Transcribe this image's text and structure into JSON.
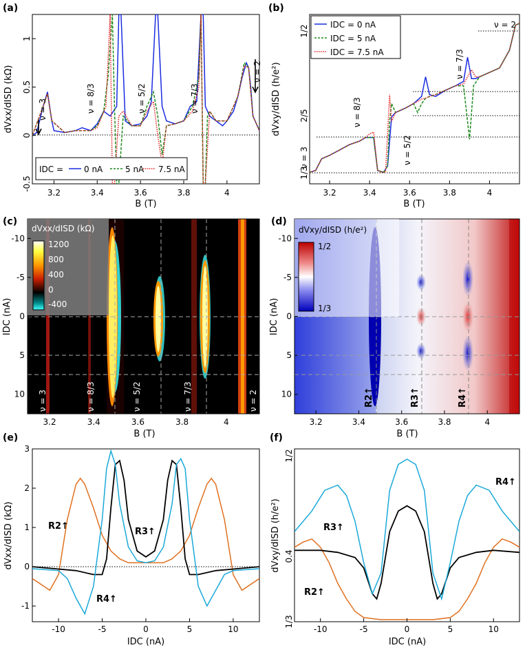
{
  "colors": {
    "blue": "#1a2be0",
    "green": "#1a8a1a",
    "red": "#e02020",
    "black": "#000000",
    "cyan": "#1aa8d8",
    "orange": "#e07020"
  },
  "chart_data": [
    {
      "panel": "(a)",
      "type": "line",
      "xlabel": "B (T)",
      "ylabel": "dVxx/dISD (kΩ)",
      "xlim": [
        3.1,
        4.15
      ],
      "ylim": [
        -0.5,
        1.25
      ],
      "xticks": [
        "3.2",
        "3.4",
        "3.6",
        "3.8",
        "4"
      ],
      "yticks": [
        "-0.5",
        "0",
        "0.5",
        "1"
      ],
      "legend_title": "IDC =",
      "legend": [
        "0 nA",
        "5 nA",
        "7.5 nA"
      ],
      "annotations": [
        "ν = 3",
        "ν = 8/3",
        "ν = 5/2",
        "ν = 7/3",
        "ν = 2"
      ],
      "series": [
        {
          "name": "0 nA",
          "x": [
            3.1,
            3.12,
            3.15,
            3.17,
            3.19,
            3.2,
            3.25,
            3.3,
            3.33,
            3.37,
            3.4,
            3.43,
            3.46,
            3.49,
            3.5,
            3.51,
            3.53,
            3.56,
            3.6,
            3.63,
            3.65,
            3.67,
            3.68,
            3.7,
            3.72,
            3.76,
            3.8,
            3.83,
            3.86,
            3.88,
            3.89,
            3.9,
            3.92,
            3.95,
            3.98,
            4.0,
            4.03,
            4.05,
            4.07,
            4.09,
            4.1,
            4.11,
            4.12,
            4.15
          ],
          "y": [
            0.0,
            0.03,
            0.3,
            0.45,
            0.15,
            0.05,
            0.03,
            0.05,
            0.08,
            0.05,
            0.12,
            0.25,
            0.2,
            0.3,
            1.25,
            1.25,
            0.15,
            0.1,
            0.12,
            0.2,
            0.35,
            1.25,
            1.25,
            0.3,
            0.15,
            0.12,
            0.15,
            0.3,
            0.35,
            1.25,
            1.25,
            0.3,
            0.2,
            0.15,
            0.1,
            0.15,
            0.25,
            0.4,
            0.6,
            0.75,
            0.7,
            0.5,
            0.2,
            0.05
          ]
        },
        {
          "name": "5 nA",
          "x": [
            3.1,
            3.15,
            3.17,
            3.19,
            3.25,
            3.3,
            3.37,
            3.4,
            3.43,
            3.45,
            3.47,
            3.48,
            3.49,
            3.5,
            3.52,
            3.56,
            3.6,
            3.63,
            3.66,
            3.68,
            3.7,
            3.72,
            3.76,
            3.8,
            3.84,
            3.87,
            3.88,
            3.89,
            3.9,
            3.91,
            3.92,
            3.95,
            4.0,
            4.05,
            4.08,
            4.1,
            4.12,
            4.15
          ],
          "y": [
            0.0,
            0.3,
            0.43,
            0.15,
            0.03,
            0.05,
            0.05,
            0.1,
            0.25,
            0.6,
            1.25,
            0.3,
            -0.5,
            -0.5,
            0.2,
            0.1,
            0.1,
            0.3,
            0.45,
            0.2,
            -0.2,
            0.1,
            0.12,
            0.15,
            0.3,
            0.6,
            1.25,
            -0.5,
            -0.5,
            0.2,
            0.25,
            0.15,
            0.15,
            0.4,
            0.75,
            0.7,
            0.2,
            0.05
          ]
        },
        {
          "name": "7.5 nA",
          "x": [
            3.1,
            3.15,
            3.17,
            3.19,
            3.25,
            3.3,
            3.37,
            3.4,
            3.44,
            3.46,
            3.47,
            3.48,
            3.5,
            3.52,
            3.56,
            3.6,
            3.63,
            3.66,
            3.68,
            3.7,
            3.72,
            3.76,
            3.8,
            3.84,
            3.87,
            3.88,
            3.89,
            3.9,
            3.92,
            3.95,
            4.0,
            4.05,
            4.08,
            4.1,
            4.12,
            4.15
          ],
          "y": [
            0.0,
            0.3,
            0.43,
            0.15,
            0.03,
            0.05,
            0.05,
            0.08,
            0.3,
            1.25,
            -0.5,
            -0.5,
            0.2,
            0.25,
            0.1,
            0.1,
            0.25,
            0.35,
            0.0,
            -0.3,
            0.1,
            0.12,
            0.15,
            0.25,
            0.5,
            1.25,
            -0.5,
            -0.5,
            0.25,
            0.15,
            0.15,
            0.4,
            0.72,
            0.7,
            0.2,
            0.05
          ]
        }
      ]
    },
    {
      "panel": "(b)",
      "type": "line",
      "xlabel": "B (T)",
      "ylabel": "dVxy/dISD (h/e²)",
      "xlim": [
        3.1,
        4.15
      ],
      "ylim": [
        0.32,
        0.51
      ],
      "xticks": [
        "3.2",
        "3.4",
        "3.6",
        "3.8",
        "4"
      ],
      "yticks": [
        "1/3",
        "2/5",
        "1/2"
      ],
      "legend": [
        "IDC = 0 nA",
        "IDC = 5 nA",
        "IDC = 7.5 nA"
      ],
      "annotations": [
        "ν = 3",
        "ν = 8/3",
        "ν = 5/2",
        "ν = 7/3",
        "ν = 2"
      ],
      "series": [
        {
          "name": "0 nA",
          "x": [
            3.1,
            3.13,
            3.16,
            3.2,
            3.25,
            3.3,
            3.35,
            3.38,
            3.4,
            3.42,
            3.44,
            3.47,
            3.49,
            3.51,
            3.53,
            3.58,
            3.62,
            3.66,
            3.68,
            3.7,
            3.73,
            3.78,
            3.83,
            3.87,
            3.89,
            3.91,
            3.93,
            3.95,
            4.0,
            4.05,
            4.1,
            4.13,
            4.15
          ],
          "y": [
            0.333,
            0.335,
            0.348,
            0.352,
            0.358,
            0.364,
            0.368,
            0.372,
            0.372,
            0.372,
            0.335,
            0.333,
            0.34,
            0.395,
            0.4,
            0.405,
            0.41,
            0.418,
            0.44,
            0.42,
            0.418,
            0.425,
            0.43,
            0.435,
            0.462,
            0.438,
            0.438,
            0.44,
            0.445,
            0.45,
            0.47,
            0.498,
            0.5
          ]
        },
        {
          "name": "5 nA",
          "x": [
            3.1,
            3.13,
            3.16,
            3.2,
            3.25,
            3.3,
            3.35,
            3.38,
            3.4,
            3.42,
            3.44,
            3.47,
            3.49,
            3.5,
            3.51,
            3.53,
            3.58,
            3.62,
            3.64,
            3.66,
            3.68,
            3.7,
            3.73,
            3.78,
            3.83,
            3.87,
            3.89,
            3.9,
            3.92,
            3.95,
            4.0,
            4.05,
            4.1,
            4.13,
            4.15
          ],
          "y": [
            0.333,
            0.335,
            0.348,
            0.352,
            0.358,
            0.364,
            0.368,
            0.372,
            0.372,
            0.372,
            0.335,
            0.333,
            0.34,
            0.39,
            0.41,
            0.4,
            0.405,
            0.41,
            0.4,
            0.41,
            0.416,
            0.418,
            0.42,
            0.425,
            0.43,
            0.43,
            0.39,
            0.37,
            0.43,
            0.44,
            0.445,
            0.45,
            0.47,
            0.498,
            0.5
          ]
        },
        {
          "name": "7.5 nA",
          "x": [
            3.1,
            3.13,
            3.16,
            3.2,
            3.25,
            3.3,
            3.35,
            3.38,
            3.4,
            3.42,
            3.44,
            3.46,
            3.48,
            3.5,
            3.51,
            3.53,
            3.58,
            3.62,
            3.66,
            3.68,
            3.7,
            3.73,
            3.78,
            3.83,
            3.87,
            3.89,
            3.91,
            3.93,
            3.95,
            4.0,
            4.05,
            4.1,
            4.13,
            4.15
          ],
          "y": [
            0.333,
            0.335,
            0.348,
            0.352,
            0.358,
            0.364,
            0.368,
            0.372,
            0.376,
            0.378,
            0.335,
            0.333,
            0.333,
            0.42,
            0.39,
            0.4,
            0.405,
            0.41,
            0.415,
            0.416,
            0.418,
            0.42,
            0.425,
            0.43,
            0.432,
            0.44,
            0.448,
            0.44,
            0.44,
            0.445,
            0.45,
            0.47,
            0.498,
            0.5
          ]
        }
      ]
    },
    {
      "panel": "(c)",
      "type": "heatmap",
      "xlabel": "B (T)",
      "ylabel": "IDC (nA)",
      "xlim": [
        3.1,
        4.15
      ],
      "ylim": [
        -12.5,
        12.5
      ],
      "xticks": [
        "3.2",
        "3.4",
        "3.6",
        "3.8",
        "4"
      ],
      "yticks": [
        "-10",
        "-5",
        "0",
        "5",
        "10"
      ],
      "colorbar_title": "dVxx/dISD (kΩ)",
      "colorbar_ticks": [
        "1200",
        "800",
        "400",
        "0",
        "-400"
      ],
      "annotations": [
        "ν = 3",
        "ν = 8/3",
        "ν = 5/2",
        "ν = 7/3",
        "ν = 2"
      ]
    },
    {
      "panel": "(d)",
      "type": "heatmap",
      "xlabel": "B (T)",
      "ylabel": "IDC (nA)",
      "xlim": [
        3.1,
        4.15
      ],
      "ylim": [
        -12.5,
        12.5
      ],
      "xticks": [
        "3.2",
        "3.4",
        "3.6",
        "3.8",
        "4"
      ],
      "yticks": [
        "-10",
        "-5",
        "0",
        "5",
        "10"
      ],
      "colorbar_title": "dVxy/dISD (h/e²)",
      "colorbar_ticks": [
        "1/2",
        "1/3"
      ],
      "annotations": [
        "R2↑",
        "R3↑",
        "R4↑"
      ]
    },
    {
      "panel": "(e)",
      "type": "line",
      "xlabel": "IDC (nA)",
      "ylabel": "dVxx/dISD (kΩ)",
      "xlim": [
        -13,
        13
      ],
      "ylim": [
        -1.4,
        3.0
      ],
      "xticks": [
        "-10",
        "-5",
        "0",
        "5",
        "10"
      ],
      "yticks": [
        "-1",
        "0",
        "1",
        "2",
        "3"
      ],
      "annotations": [
        "R2↑",
        "R3↑",
        "R4↑"
      ],
      "series": [
        {
          "name": "R2↑",
          "x": [
            -13,
            -11,
            -10,
            -9,
            -8,
            -7.5,
            -7,
            -6,
            -5,
            -4,
            -3,
            -2,
            0,
            2,
            3,
            4,
            5,
            6,
            7,
            7.5,
            8,
            9,
            10,
            11,
            13
          ],
          "y": [
            -0.3,
            -0.6,
            -0.2,
            1.2,
            2.1,
            2.25,
            2.1,
            1.5,
            0.8,
            0.4,
            0.2,
            0.1,
            0.1,
            0.1,
            0.2,
            0.4,
            0.8,
            1.5,
            2.1,
            2.25,
            2.1,
            1.2,
            -0.2,
            -0.6,
            -0.3
          ]
        },
        {
          "name": "R3↑",
          "x": [
            -13,
            -8,
            -6,
            -5,
            -4.5,
            -4,
            -3.5,
            -3,
            -2.5,
            -2,
            -1,
            0,
            1,
            2,
            2.5,
            3,
            3.5,
            4,
            4.5,
            5,
            6,
            8,
            13
          ],
          "y": [
            0,
            -0.1,
            -0.2,
            -0.2,
            0.2,
            1.5,
            2.6,
            2.7,
            2.2,
            1.2,
            0.4,
            0.25,
            0.4,
            1.2,
            2.2,
            2.7,
            2.6,
            1.5,
            0.2,
            -0.2,
            -0.2,
            -0.1,
            0
          ]
        },
        {
          "name": "R4↑",
          "x": [
            -13,
            -10,
            -9,
            -8,
            -7,
            -6,
            -5,
            -4.5,
            -4,
            -3.5,
            -3,
            -2,
            -1,
            0,
            1,
            2,
            3,
            3.5,
            4,
            4.5,
            5,
            6,
            7,
            8,
            9,
            10,
            13
          ],
          "y": [
            -0.05,
            -0.1,
            -0.3,
            -0.8,
            -1.2,
            -0.5,
            1.2,
            2.5,
            2.95,
            2.6,
            1.6,
            0.5,
            0.15,
            0.1,
            0.15,
            0.5,
            1.6,
            2.6,
            2.75,
            2.5,
            1.2,
            -0.5,
            -1.0,
            -0.6,
            -0.2,
            -0.1,
            -0.05
          ]
        }
      ]
    },
    {
      "panel": "(f)",
      "type": "line",
      "xlabel": "IDC (nA)",
      "ylabel": "dVxy/dISD (h/e²)",
      "xlim": [
        -13,
        13
      ],
      "ylim": [
        0.333,
        0.5
      ],
      "xticks": [
        "-10",
        "-5",
        "0",
        "5",
        "10"
      ],
      "yticks": [
        "1/3",
        "0.4",
        "1/2"
      ],
      "annotations": [
        "R2↑",
        "R3↑",
        "R4↑"
      ],
      "series": [
        {
          "name": "R2↑",
          "x": [
            -13,
            -12,
            -11,
            -10,
            -9,
            -8,
            -7,
            -6,
            -5,
            -3,
            0,
            3,
            5,
            6,
            7,
            8,
            9,
            10,
            11,
            12,
            13
          ],
          "y": [
            0.405,
            0.41,
            0.413,
            0.405,
            0.39,
            0.37,
            0.355,
            0.343,
            0.337,
            0.335,
            0.335,
            0.335,
            0.337,
            0.343,
            0.355,
            0.37,
            0.39,
            0.405,
            0.413,
            0.41,
            0.405
          ]
        },
        {
          "name": "R3↑",
          "x": [
            -13,
            -10,
            -8,
            -6,
            -5,
            -4,
            -3.5,
            -3,
            -2,
            -1,
            0,
            1,
            2,
            3,
            3.5,
            4,
            5,
            6,
            8,
            10,
            13
          ],
          "y": [
            0.402,
            0.402,
            0.4,
            0.395,
            0.385,
            0.36,
            0.355,
            0.37,
            0.42,
            0.44,
            0.445,
            0.44,
            0.42,
            0.37,
            0.355,
            0.36,
            0.385,
            0.395,
            0.4,
            0.402,
            0.4
          ]
        },
        {
          "name": "R4↑",
          "x": [
            -13,
            -11,
            -9.5,
            -8,
            -7,
            -6,
            -5,
            -4,
            -3,
            -2,
            -1,
            0,
            1,
            2,
            3,
            4,
            5,
            6,
            7,
            8,
            9.5,
            11,
            13
          ],
          "y": [
            0.42,
            0.44,
            0.46,
            0.465,
            0.455,
            0.43,
            0.39,
            0.36,
            0.38,
            0.46,
            0.485,
            0.49,
            0.485,
            0.46,
            0.38,
            0.355,
            0.39,
            0.43,
            0.455,
            0.465,
            0.46,
            0.44,
            0.42
          ]
        }
      ]
    }
  ]
}
